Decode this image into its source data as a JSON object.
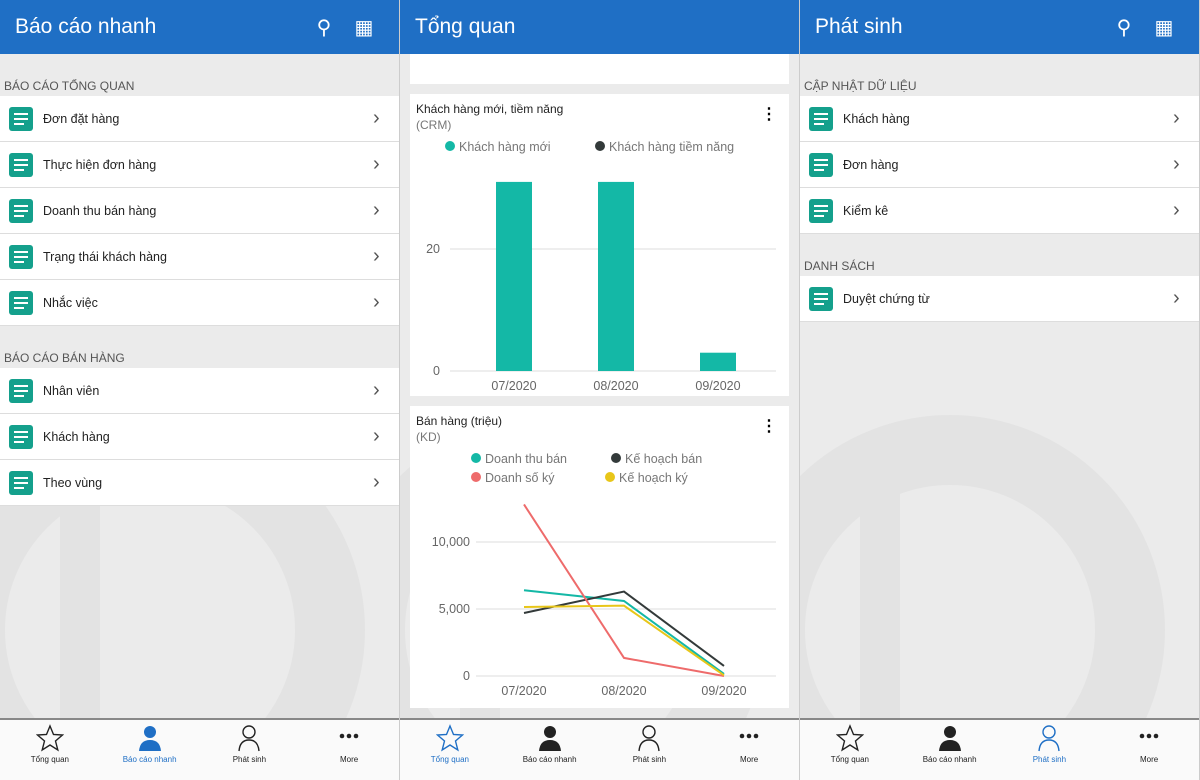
{
  "screens": [
    {
      "title": "Báo cáo nhanh",
      "sections": [
        {
          "label": "BÁO CÁO TỔNG QUAN",
          "items": [
            {
              "label": "Đơn đặt hàng",
              "icon": "order-icon"
            },
            {
              "label": "Thực hiện đơn hàng",
              "icon": "order-progress-icon"
            },
            {
              "label": "Doanh thu bán hàng",
              "icon": "revenue-chart-icon"
            },
            {
              "label": "Trạng thái khách hàng",
              "icon": "customer-status-icon"
            },
            {
              "label": "Nhắc việc",
              "icon": "clipboard-icon"
            }
          ]
        },
        {
          "label": "BÁO CÁO BÁN HÀNG",
          "items": [
            {
              "label": "Nhân viên",
              "icon": "org-chart-icon"
            },
            {
              "label": "Khách hàng",
              "icon": "customers-icon"
            },
            {
              "label": "Theo vùng",
              "icon": "map-pin-icon"
            }
          ]
        }
      ]
    },
    {
      "title": "Tổng quan"
    },
    {
      "title": "Phát sinh",
      "sections": [
        {
          "label": "CẬP NHẬT DỮ LIỆU",
          "items": [
            {
              "label": "Khách hàng",
              "icon": "customers-icon"
            },
            {
              "label": "Đơn hàng",
              "icon": "order-icon"
            },
            {
              "label": "Kiểm kê",
              "icon": "warehouse-icon"
            }
          ]
        },
        {
          "label": "DANH SÁCH",
          "items": [
            {
              "label": "Duyệt chứng từ",
              "icon": "approve-document-icon"
            }
          ]
        }
      ]
    }
  ],
  "nav": [
    {
      "label": "Tổng quan",
      "icon": "star-icon"
    },
    {
      "label": "Báo cáo nhanh",
      "icon": "person-filled-icon"
    },
    {
      "label": "Phát sinh",
      "icon": "person-outline-icon"
    },
    {
      "label": "More",
      "icon": "more-icon"
    }
  ],
  "nav_active": [
    "Báo cáo nhanh",
    "Tổng quan",
    "Phát sinh"
  ],
  "colors": {
    "header": "#1f6fc5",
    "teal": "#14b8a6",
    "dark": "#333a3a",
    "red": "#ee6b6b",
    "yellow": "#e8c619"
  },
  "chart_data": [
    {
      "type": "bar",
      "title": "Khách hàng mới, tiềm năng",
      "subtitle": "(CRM)",
      "categories": [
        "07/2020",
        "08/2020",
        "09/2020"
      ],
      "series": [
        {
          "name": "Khách hàng mới",
          "values": [
            31,
            31,
            3
          ]
        },
        {
          "name": "Khách hàng tiềm năng",
          "values": [
            0,
            0,
            0
          ]
        }
      ],
      "yticks": [
        "0",
        "20"
      ],
      "ylim": [
        0,
        35
      ],
      "grid": true,
      "legend": "top"
    },
    {
      "type": "line",
      "title": "Bán hàng (triệu)",
      "subtitle": "(KD)",
      "categories": [
        "07/2020",
        "08/2020",
        "09/2020"
      ],
      "series": [
        {
          "name": "Doanh thu bán",
          "values": [
            6400,
            5600,
            150
          ]
        },
        {
          "name": "Kế hoạch bán",
          "values": [
            4700,
            6300,
            750
          ]
        },
        {
          "name": "Doanh số ký",
          "values": [
            12800,
            1350,
            0
          ]
        },
        {
          "name": "Kế hoạch ký",
          "values": [
            5150,
            5250,
            50
          ]
        }
      ],
      "yticks": [
        "0",
        "5,000",
        "10,000"
      ],
      "ylim": [
        0,
        13000
      ],
      "grid": true,
      "legend": "top"
    }
  ]
}
